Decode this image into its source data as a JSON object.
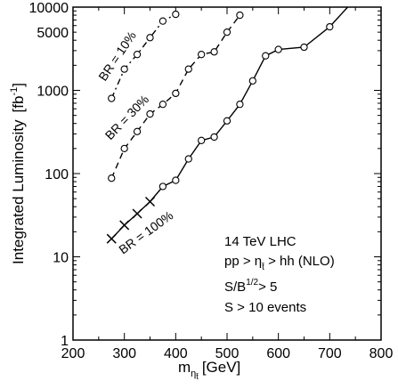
{
  "chart_data": {
    "type": "line",
    "xlabel": "m",
    "xlabel_sub": "η",
    "xlabel_subsub": "t̄",
    "xlabel_unit": "[GeV]",
    "ylabel": "Integrated Luminosity",
    "ylabel_unit_open": "[fb",
    "ylabel_unit_sup": "-1",
    "ylabel_unit_close": "]",
    "xlim": [
      200,
      800
    ],
    "ylim": [
      1,
      10000
    ],
    "yscale": "log",
    "grid": false,
    "x_ticks": [
      {
        "value": 200,
        "label": "200"
      },
      {
        "value": 300,
        "label": "300"
      },
      {
        "value": 400,
        "label": "400"
      },
      {
        "value": 500,
        "label": "500"
      },
      {
        "value": 600,
        "label": "600"
      },
      {
        "value": 700,
        "label": "700"
      },
      {
        "value": 800,
        "label": "800"
      }
    ],
    "y_ticks": [
      {
        "value": 1,
        "label": "1"
      },
      {
        "value": 10,
        "label": "10"
      },
      {
        "value": 100,
        "label": "100"
      },
      {
        "value": 1000,
        "label": "1000"
      },
      {
        "value": 5000,
        "label": "5000"
      },
      {
        "value": 10000,
        "label": "10000"
      }
    ],
    "series": [
      {
        "label": "BR = 100%",
        "style": "solid",
        "x": [
          275,
          300,
          325,
          350,
          375,
          400,
          425,
          450,
          475,
          500,
          525,
          550,
          575,
          600,
          650,
          700,
          735
        ],
        "y": [
          16.5,
          24,
          33,
          46,
          70,
          83,
          150,
          250,
          275,
          430,
          680,
          1300,
          2600,
          3100,
          3300,
          5800,
          10000
        ],
        "markers": [
          "x",
          "x",
          "x",
          "x",
          "o",
          "o",
          "o",
          "o",
          "o",
          "o",
          "o",
          "o",
          "o",
          "o",
          "o",
          "o",
          "none"
        ]
      },
      {
        "label": "BR = 30%",
        "style": "dashed",
        "x": [
          275,
          300,
          325,
          350,
          375,
          400,
          425,
          450,
          475,
          500,
          525
        ],
        "y": [
          88,
          200,
          320,
          520,
          680,
          920,
          1800,
          2700,
          2900,
          5000,
          8000
        ],
        "markers": [
          "o",
          "o",
          "o",
          "o",
          "o",
          "o",
          "o",
          "o",
          "o",
          "o",
          "o"
        ]
      },
      {
        "label": "BR = 10%",
        "style": "dashdot",
        "x": [
          275,
          300,
          325,
          350,
          375,
          400
        ],
        "y": [
          800,
          1800,
          2700,
          4300,
          6800,
          8200
        ],
        "markers": [
          "o",
          "o",
          "o",
          "o",
          "o",
          "o"
        ]
      }
    ],
    "annotations": [
      "14 TeV LHC",
      "pp > η_t̄ > hh  (NLO)",
      "S/B^1/2 > 5",
      "S > 10 events"
    ],
    "text": {
      "ann1": "14 TeV LHC",
      "ann2a": "pp > η",
      "ann2sub": "t̄",
      "ann2b": " > hh  (NLO)",
      "ann3a": "S/B",
      "ann3sup": "1/2",
      "ann3b": "> 5",
      "ann4": "S > 10 events"
    }
  }
}
